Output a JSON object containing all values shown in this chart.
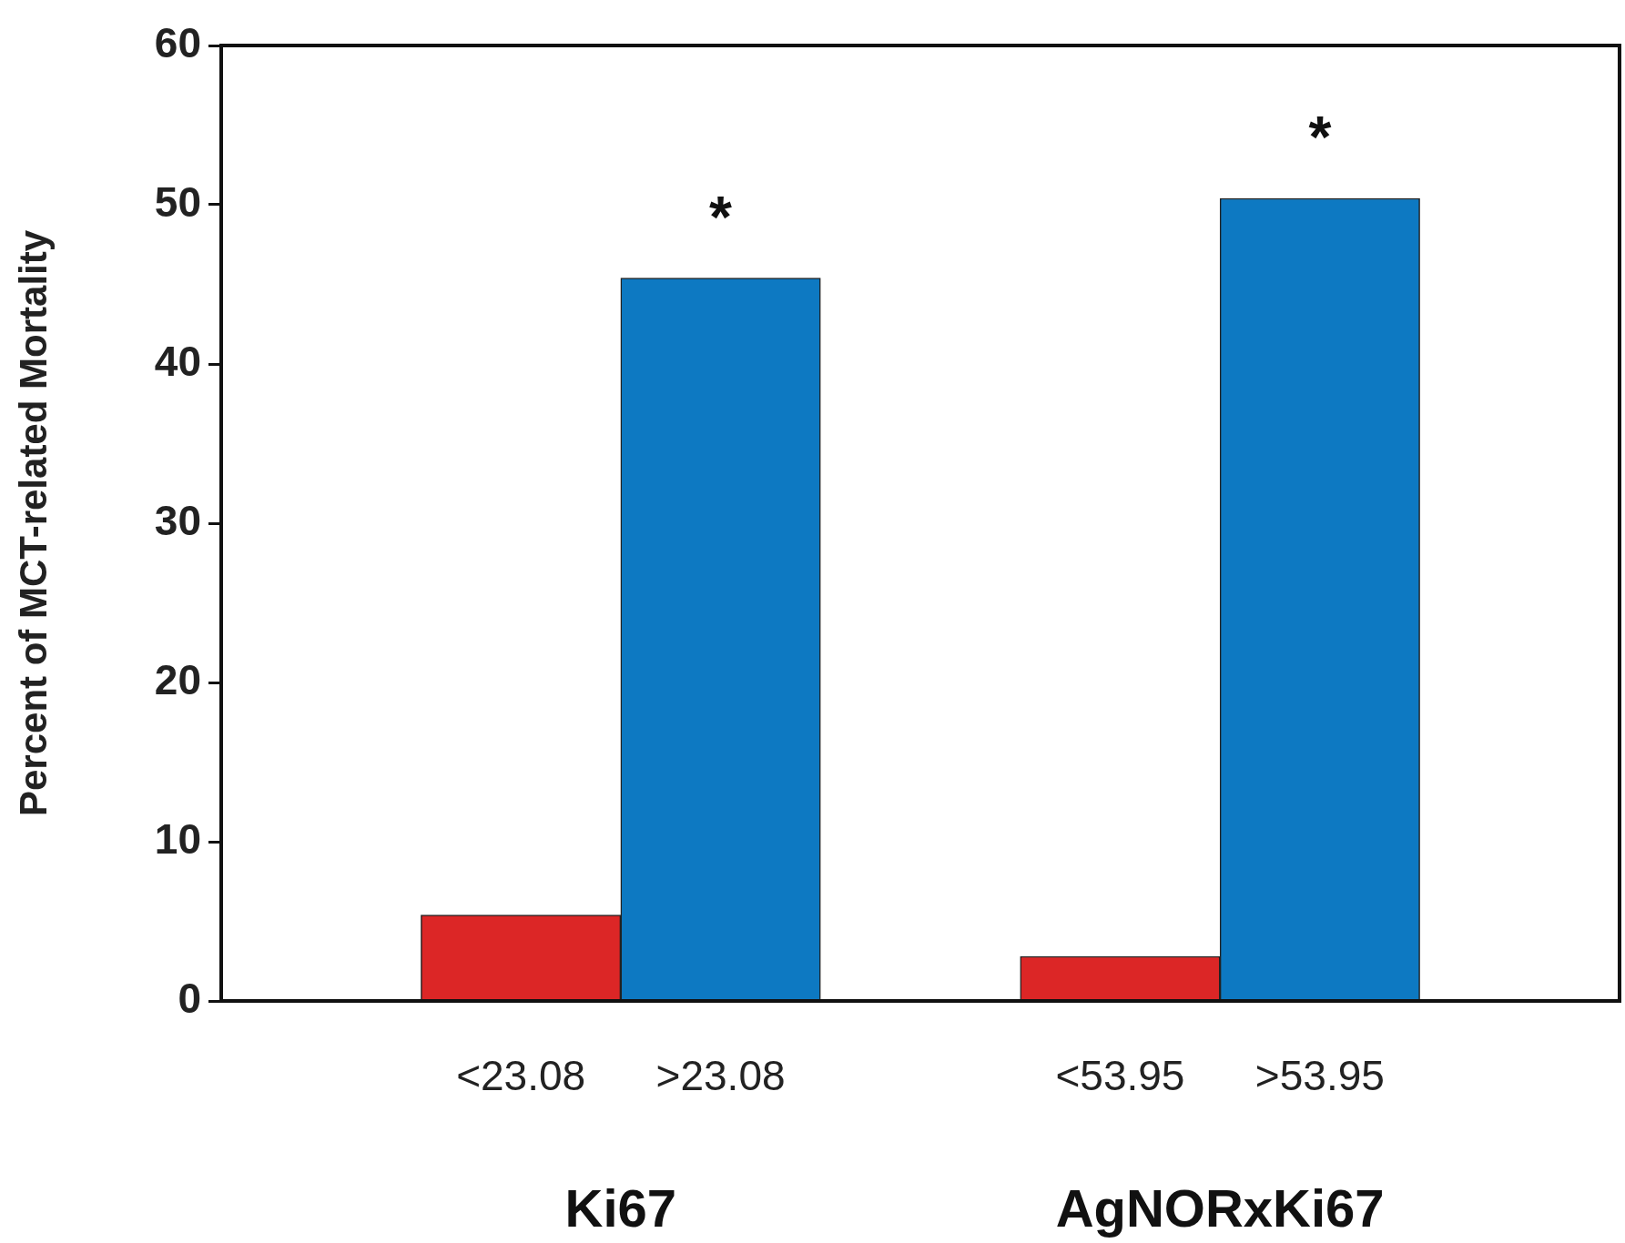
{
  "chart_data": {
    "type": "bar",
    "ylabel": "Percent of MCT-related Mortality",
    "categories": [
      "<23.08",
      ">23.08",
      "<53.95",
      ">53.95"
    ],
    "values": [
      5.4,
      45.4,
      2.8,
      50.4
    ],
    "colors": [
      "#dc2626",
      "#0d79c2",
      "#dc2626",
      "#0d79c2"
    ],
    "ylim": [
      0,
      60
    ],
    "yticks": [
      0,
      10,
      20,
      30,
      40,
      50,
      60
    ],
    "annotations": [
      "*",
      "*",
      "Ki67",
      "AgNORxKi67"
    ]
  }
}
